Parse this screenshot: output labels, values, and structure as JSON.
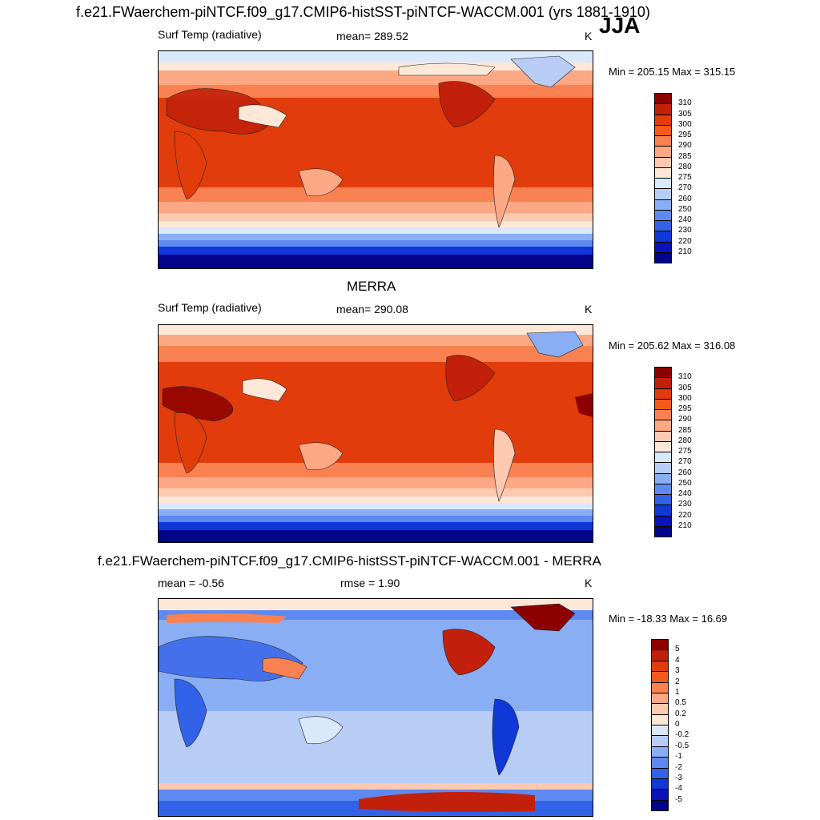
{
  "title": "f.e21.FWaerchem-piNTCF.f09_g17.CMIP6-histSST-piNTCF-WACCM.001 (yrs 1881-1910)",
  "season": "JJA",
  "chart_data": [
    {
      "type": "heatmap",
      "title": "",
      "left_label": "Surf Temp (radiative)",
      "center_label": "mean= 289.52",
      "right_label": "K",
      "minmax": "Min = 205.15 Max = 315.15",
      "colorbar": {
        "labels": [
          "310",
          "305",
          "300",
          "295",
          "290",
          "285",
          "280",
          "275",
          "270",
          "260",
          "250",
          "240",
          "230",
          "220",
          "210"
        ],
        "colors": [
          "#8c0000",
          "#c2200a",
          "#e23c0c",
          "#f45a1c",
          "#fa8252",
          "#fca884",
          "#fdc9b0",
          "#fde8d8",
          "#d9e8fb",
          "#b8cdf6",
          "#8aaef4",
          "#5e89f0",
          "#3262e8",
          "#1038d8",
          "#0a12b8",
          "#02048a"
        ]
      }
    },
    {
      "type": "heatmap",
      "title": "MERRA",
      "left_label": "Surf Temp (radiative)",
      "center_label": "mean= 290.08",
      "right_label": "K",
      "minmax": "Min = 205.62 Max = 316.08",
      "colorbar": {
        "labels": [
          "310",
          "305",
          "300",
          "295",
          "290",
          "285",
          "280",
          "275",
          "270",
          "260",
          "250",
          "240",
          "230",
          "220",
          "210"
        ],
        "colors": [
          "#8c0000",
          "#c2200a",
          "#e23c0c",
          "#f45a1c",
          "#fa8252",
          "#fca884",
          "#fdc9b0",
          "#fde8d8",
          "#d9e8fb",
          "#b8cdf6",
          "#8aaef4",
          "#5e89f0",
          "#3262e8",
          "#1038d8",
          "#0a12b8",
          "#02048a"
        ]
      }
    },
    {
      "type": "heatmap",
      "title": "f.e21.FWaerchem-piNTCF.f09_g17.CMIP6-histSST-piNTCF-WACCM.001 - MERRA",
      "left_label": "mean =  -0.56",
      "center_label": "rmse =   1.90",
      "right_label": "K",
      "minmax": "Min = -18.33 Max =  16.69",
      "colorbar": {
        "labels": [
          "5",
          "4",
          "3",
          "2",
          "1",
          "0.5",
          "0.2",
          "0",
          "-0.2",
          "-0.5",
          "-1",
          "-2",
          "-3",
          "-4",
          "-5"
        ],
        "colors": [
          "#8c0000",
          "#c2200a",
          "#e23c0c",
          "#f45a1c",
          "#fa8252",
          "#fca884",
          "#fdc9b0",
          "#fde8d8",
          "#d9e8fb",
          "#b8cdf6",
          "#8aaef4",
          "#5e89f0",
          "#3262e8",
          "#1038d8",
          "#0a12b8",
          "#02048a"
        ]
      }
    }
  ]
}
